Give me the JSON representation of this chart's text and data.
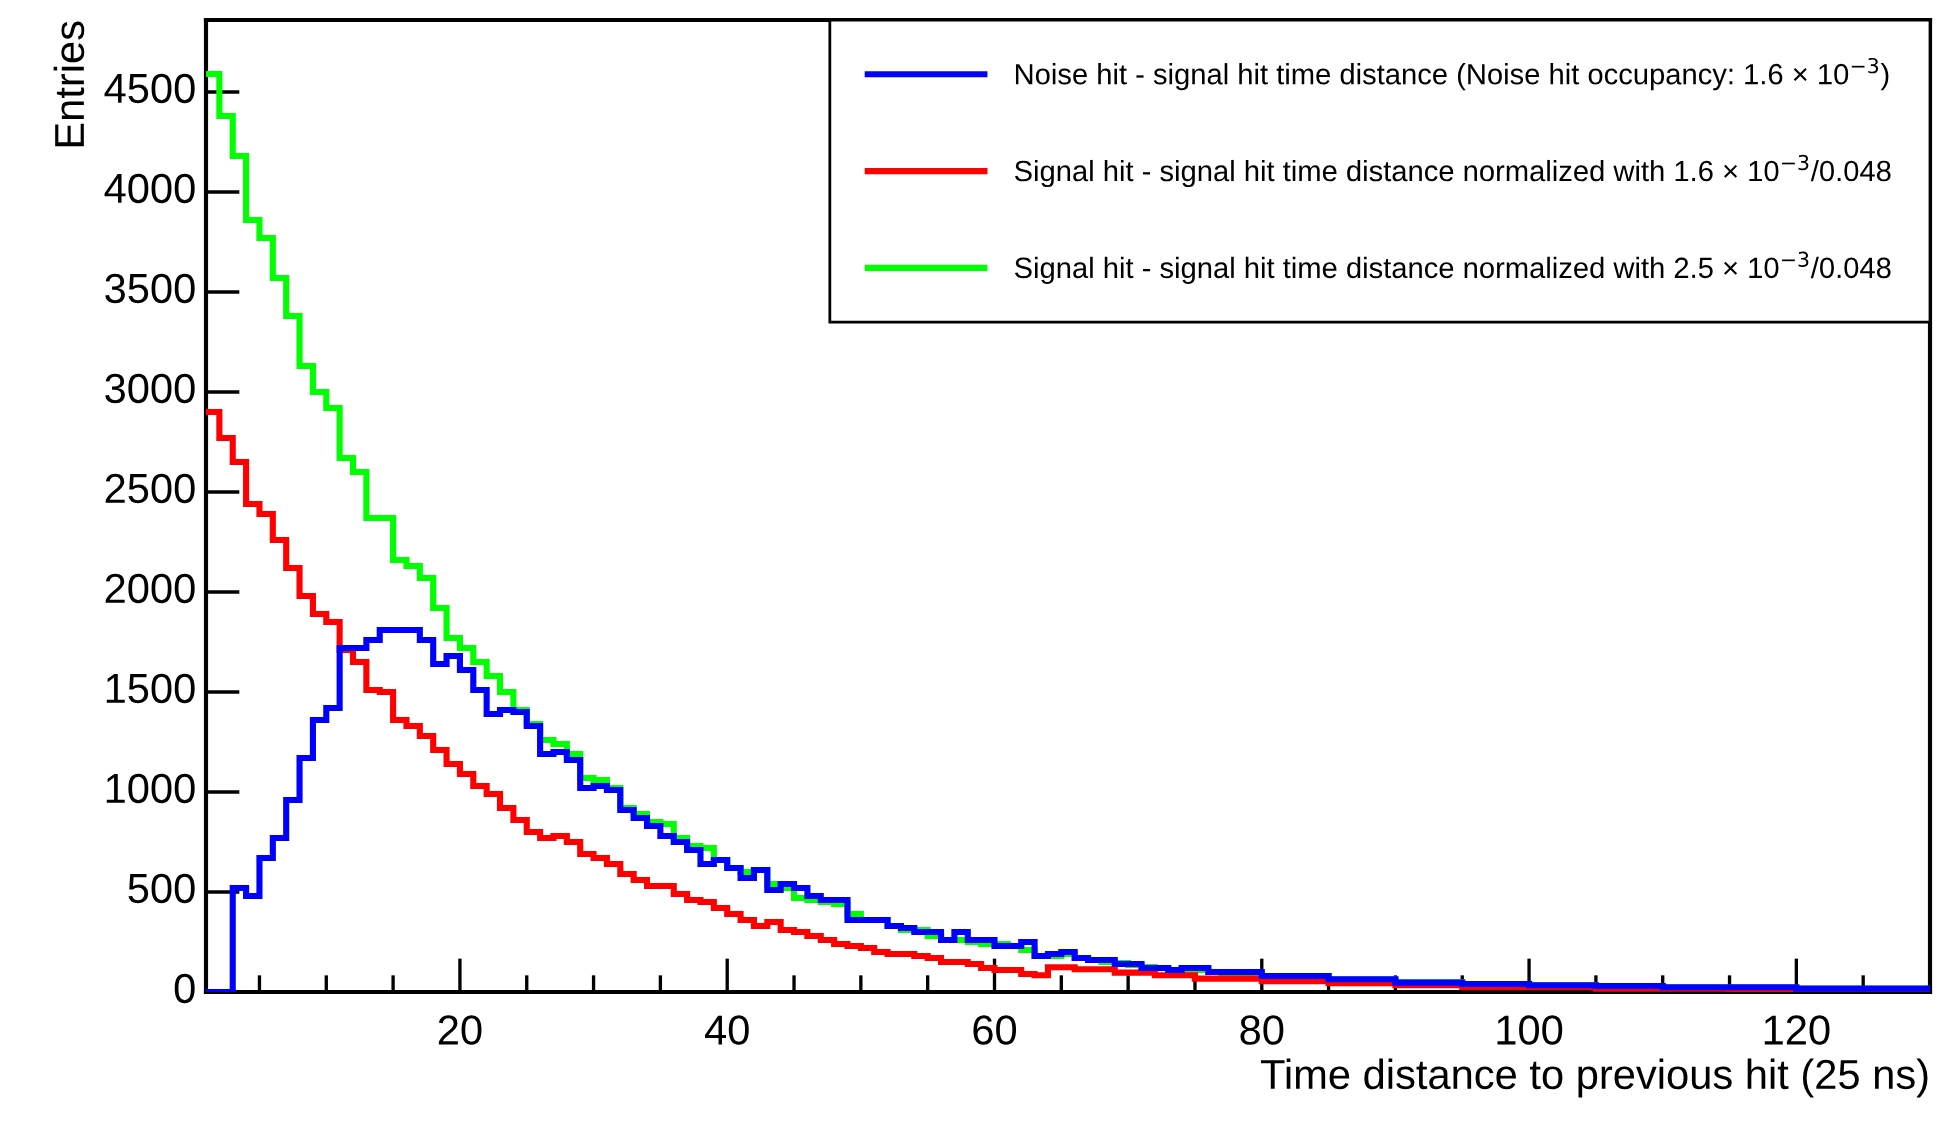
{
  "chart_data": {
    "type": "histogram",
    "xlabel": "Time distance to previous hit (25 ns)",
    "ylabel": "Entries",
    "bins": [
      1,
      2,
      3,
      4,
      5,
      6,
      7,
      8,
      9,
      10,
      11,
      12,
      13,
      14,
      15,
      16,
      17,
      18,
      19,
      20,
      21,
      22,
      23,
      24,
      25,
      26,
      27,
      28,
      29,
      30,
      31,
      32,
      33,
      34,
      35,
      36,
      37,
      38,
      39,
      40,
      41,
      42,
      43,
      44,
      45,
      46,
      47,
      48,
      49,
      50,
      51,
      52,
      53,
      54,
      55,
      56,
      57,
      58,
      59,
      60,
      61,
      62,
      63,
      64,
      65,
      66,
      67,
      68,
      69,
      70,
      71,
      72,
      73,
      74,
      75,
      76,
      77,
      78,
      79,
      80,
      81,
      82,
      83,
      84,
      85,
      86,
      87,
      88,
      89,
      90,
      91,
      92,
      93,
      94,
      95,
      96,
      97,
      98,
      99,
      100,
      101,
      102,
      103,
      104,
      105,
      106,
      107,
      108,
      109,
      110,
      111,
      112,
      113,
      114,
      115,
      116,
      117,
      118,
      119,
      120,
      121,
      122,
      123,
      124,
      125,
      126,
      127,
      128,
      129,
      130
    ],
    "series": [
      {
        "name": "Noise hit - signal hit time distance (Noise hit occupancy: 1.6 × 10$^{−3}$)",
        "color": "#0000ff",
        "values": [
          0,
          0,
          520,
          480,
          670,
          770,
          960,
          1170,
          1360,
          1420,
          1720,
          1720,
          1760,
          1810,
          1810,
          1810,
          1760,
          1640,
          1680,
          1610,
          1510,
          1390,
          1410,
          1400,
          1330,
          1190,
          1200,
          1160,
          1020,
          1030,
          1010,
          910,
          870,
          830,
          780,
          750,
          710,
          640,
          660,
          620,
          570,
          610,
          510,
          540,
          520,
          480,
          460,
          460,
          360,
          360,
          360,
          330,
          320,
          300,
          300,
          260,
          300,
          260,
          260,
          230,
          230,
          250,
          180,
          190,
          200,
          170,
          160,
          160,
          140,
          140,
          120,
          120,
          110,
          120,
          120,
          100,
          100,
          100,
          100,
          80,
          80,
          80,
          80,
          80,
          64,
          64,
          64,
          64,
          64,
          47,
          47,
          47,
          47,
          47,
          40,
          40,
          40,
          40,
          40,
          34,
          34,
          34,
          34,
          34,
          30,
          30,
          30,
          30,
          30,
          24,
          24,
          24,
          24,
          24,
          24,
          24,
          24,
          24,
          24,
          17,
          17,
          17,
          17,
          17,
          17,
          17,
          17,
          17,
          17
        ]
      },
      {
        "name": "Signal hit - signal hit time distance normalized with 1.6 × 10$^{−3}$/0.048",
        "color": "#ff0000",
        "values": [
          2900,
          2770,
          2650,
          2440,
          2390,
          2260,
          2120,
          1980,
          1890,
          1850,
          1710,
          1650,
          1510,
          1500,
          1360,
          1330,
          1280,
          1210,
          1140,
          1090,
          1030,
          990,
          920,
          860,
          800,
          770,
          780,
          750,
          690,
          670,
          640,
          590,
          560,
          530,
          530,
          490,
          460,
          450,
          420,
          390,
          360,
          330,
          350,
          310,
          300,
          280,
          260,
          240,
          230,
          220,
          200,
          190,
          190,
          180,
          170,
          150,
          150,
          140,
          120,
          110,
          110,
          90,
          84,
          124,
          124,
          114,
          114,
          114,
          97,
          97,
          97,
          84,
          84,
          84,
          67,
          67,
          67,
          67,
          67,
          54,
          54,
          54,
          54,
          54,
          44,
          44,
          44,
          44,
          44,
          34,
          34,
          34,
          34,
          34,
          24,
          24,
          24,
          24,
          24,
          24,
          24,
          24,
          24,
          24,
          17,
          17,
          17,
          17,
          17,
          17,
          17,
          17,
          17,
          17,
          10,
          10,
          10,
          10,
          10,
          10,
          10,
          10,
          10,
          10,
          10,
          10,
          10,
          10,
          10
        ]
      },
      {
        "name": "Signal hit - signal hit time distance normalized with 2.5 × 10$^{−3}$/0.048",
        "color": "#00ff00",
        "values": [
          4590,
          4380,
          4180,
          3860,
          3770,
          3570,
          3380,
          3130,
          3000,
          2920,
          2670,
          2600,
          2370,
          2370,
          2160,
          2130,
          2070,
          1920,
          1770,
          1720,
          1650,
          1580,
          1500,
          1410,
          1340,
          1260,
          1240,
          1190,
          1070,
          1060,
          1020,
          920,
          890,
          850,
          840,
          770,
          730,
          720,
          660,
          620,
          600,
          610,
          540,
          520,
          470,
          460,
          450,
          440,
          390,
          360,
          360,
          330,
          310,
          310,
          280,
          260,
          260,
          250,
          240,
          240,
          230,
          210,
          180,
          180,
          190,
          170,
          160,
          150,
          145,
          135,
          125,
          120,
          110,
          112,
          110,
          100,
          95,
          92,
          90,
          78,
          78,
          78,
          78,
          78,
          62,
          62,
          62,
          62,
          62,
          48,
          48,
          48,
          48,
          48,
          40,
          40,
          40,
          40,
          40,
          33,
          33,
          33,
          33,
          33,
          28,
          28,
          28,
          28,
          28,
          22,
          22,
          22,
          22,
          22,
          22,
          22,
          22,
          22,
          22,
          16,
          16,
          16,
          16,
          16,
          16,
          16,
          16,
          16,
          16
        ]
      }
    ],
    "xlim": [
      1,
      130
    ],
    "xticks": [
      20,
      40,
      60,
      80,
      100,
      120
    ],
    "ylim": [
      0,
      4860
    ],
    "yticks": [
      0,
      500,
      1000,
      1500,
      2000,
      2500,
      3000,
      3500,
      4000,
      4500
    ],
    "grid": false,
    "legend": "top right"
  }
}
